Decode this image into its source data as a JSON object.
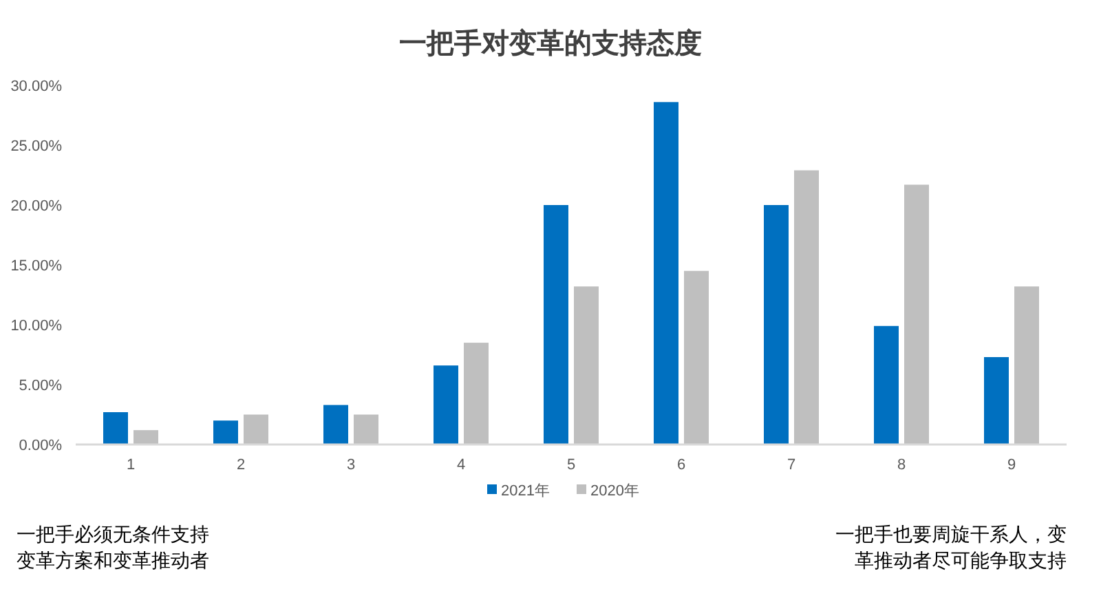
{
  "chart_data": {
    "type": "bar",
    "title": "一把手对变革的支持态度",
    "categories": [
      "1",
      "2",
      "3",
      "4",
      "5",
      "6",
      "7",
      "8",
      "9"
    ],
    "series": [
      {
        "name": "2021年",
        "color": "#0070c0",
        "values": [
          2.7,
          2.0,
          3.3,
          6.6,
          20.0,
          28.6,
          20.0,
          9.9,
          7.3
        ]
      },
      {
        "name": "2020年",
        "color": "#bfbfbf",
        "values": [
          1.2,
          2.5,
          2.5,
          8.5,
          13.2,
          14.5,
          22.9,
          21.7,
          13.2
        ]
      }
    ],
    "ylim": [
      0,
      30
    ],
    "yticks": [
      {
        "value": 0,
        "label": "0.00%"
      },
      {
        "value": 5,
        "label": "5.00%"
      },
      {
        "value": 10,
        "label": "10.00%"
      },
      {
        "value": 15,
        "label": "15.00%"
      },
      {
        "value": 20,
        "label": "20.00%"
      },
      {
        "value": 25,
        "label": "25.00%"
      },
      {
        "value": 30,
        "label": "30.00%"
      }
    ],
    "legend": "bottom",
    "annotations": [
      "一把手必须无条件支持",
      "变革方案和变革推动者",
      "一把手也要周旋干系人，变",
      "革推动者尽可能争取支持"
    ]
  }
}
